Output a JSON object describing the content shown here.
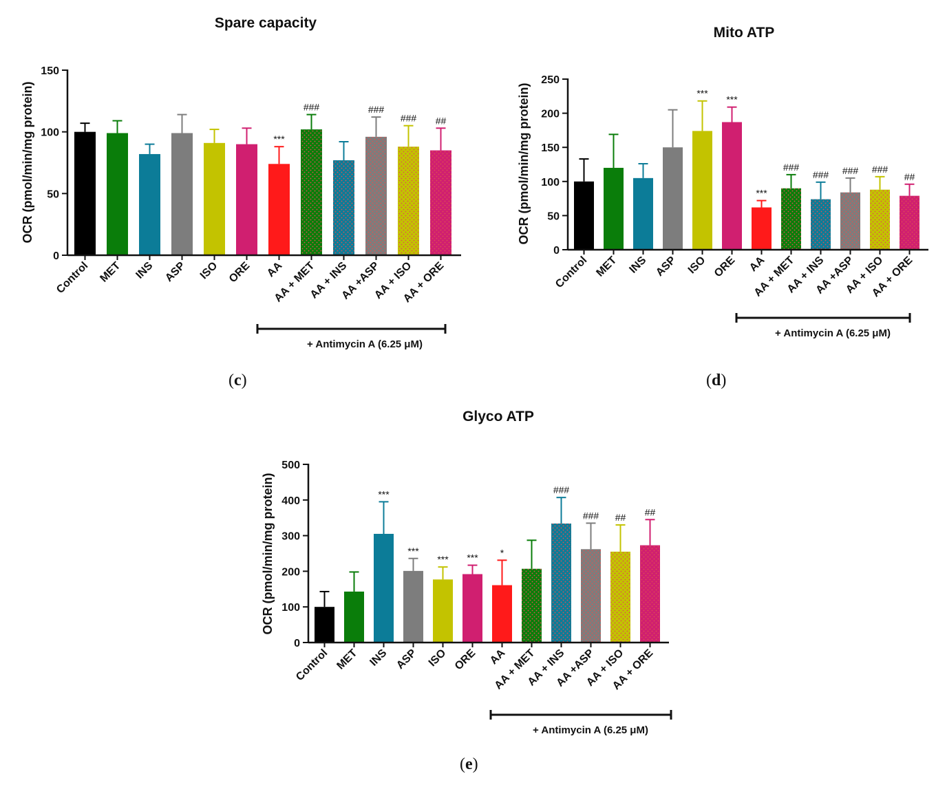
{
  "figure": {
    "ylabel": "OCR (pmol/min/mg protein)",
    "bracket_label": "+ Antimycin A (6.25 μM)",
    "categories": [
      "Control",
      "MET",
      "INS",
      "ASP",
      "ISO",
      "ORE",
      "AA",
      "AA + MET",
      "AA + INS",
      "AA +ASP",
      "AA + ISO",
      "AA + ORE"
    ],
    "colors": [
      "#000000",
      "#0a7d0a",
      "#0c7c98",
      "#7d7d7d",
      "#c3c300",
      "#d01f70",
      "#ff1a1a",
      "#0a7d0a",
      "#0c7c98",
      "#7d7d7d",
      "#c3c300",
      "#d01f70"
    ],
    "pattern_overlay": "#e05050"
  },
  "chart_data": [
    {
      "id": "c",
      "type": "bar",
      "title": "Spare capacity",
      "panel_letter": "c",
      "ylabel": "OCR (pmol/min/mg protein)",
      "ylim": [
        0,
        150
      ],
      "yticks": [
        0,
        50,
        100,
        150
      ],
      "categories": [
        "Control",
        "MET",
        "INS",
        "ASP",
        "ISO",
        "ORE",
        "AA",
        "AA + MET",
        "AA + INS",
        "AA +ASP",
        "AA + ISO",
        "AA + ORE"
      ],
      "values": [
        100,
        99,
        82,
        99,
        91,
        90,
        74,
        102,
        77,
        96,
        88,
        85
      ],
      "errors": [
        7,
        10,
        8,
        15,
        11,
        13,
        14,
        12,
        15,
        16,
        17,
        18
      ],
      "significance": [
        "",
        "",
        "",
        "",
        "",
        "",
        "***",
        "###",
        "",
        "###",
        "###",
        "##"
      ]
    },
    {
      "id": "d",
      "type": "bar",
      "title": "Mito ATP",
      "panel_letter": "d",
      "ylabel": "OCR (pmol/min/mg protein)",
      "ylim": [
        0,
        250
      ],
      "yticks": [
        0,
        50,
        100,
        150,
        200,
        250
      ],
      "categories": [
        "Control",
        "MET",
        "INS",
        "ASP",
        "ISO",
        "ORE",
        "AA",
        "AA + MET",
        "AA + INS",
        "AA +ASP",
        "AA + ISO",
        "AA + ORE"
      ],
      "values": [
        100,
        120,
        105,
        150,
        174,
        187,
        62,
        90,
        74,
        84,
        88,
        79
      ],
      "errors": [
        33,
        49,
        21,
        55,
        44,
        22,
        10,
        20,
        25,
        21,
        19,
        17
      ],
      "significance": [
        "",
        "",
        "",
        "",
        "***",
        "***",
        "***",
        "###",
        "###",
        "###",
        "###",
        "##"
      ]
    },
    {
      "id": "e",
      "type": "bar",
      "title": "Glyco ATP",
      "panel_letter": "e",
      "ylabel": "OCR (pmol/min/mg protein)",
      "ylim": [
        0,
        500
      ],
      "yticks": [
        0,
        100,
        200,
        300,
        400,
        500
      ],
      "categories": [
        "Control",
        "MET",
        "INS",
        "ASP",
        "ISO",
        "ORE",
        "AA",
        "AA + MET",
        "AA + INS",
        "AA +ASP",
        "AA + ISO",
        "AA + ORE"
      ],
      "values": [
        100,
        143,
        305,
        201,
        177,
        192,
        161,
        207,
        334,
        262,
        255,
        273
      ],
      "errors": [
        43,
        55,
        90,
        35,
        35,
        25,
        70,
        80,
        73,
        73,
        75,
        72
      ],
      "significance": [
        "",
        "",
        "***",
        "***",
        "***",
        "***",
        "*",
        "",
        "###",
        "###",
        "##",
        "##"
      ]
    }
  ]
}
